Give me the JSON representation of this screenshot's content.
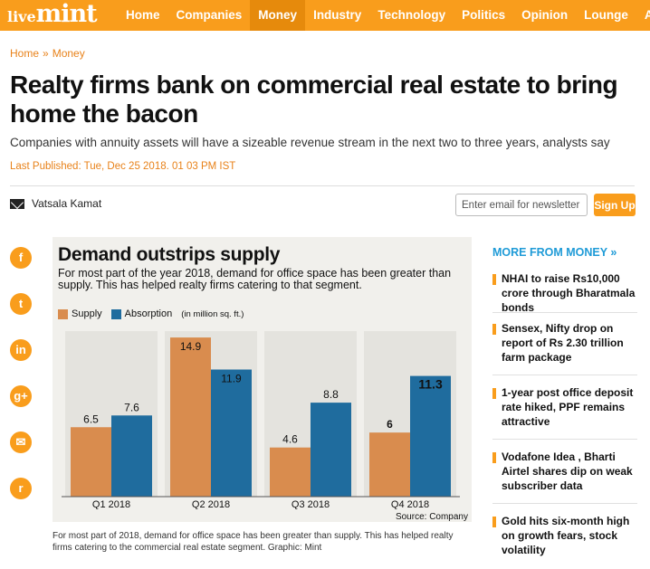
{
  "logo": {
    "part1": "live",
    "part2": "mint"
  },
  "nav": [
    "Home",
    "Companies",
    "Money",
    "Industry",
    "Technology",
    "Politics",
    "Opinion",
    "Lounge",
    "AI"
  ],
  "nav_active": "Money",
  "breadcrumb": {
    "home": "Home",
    "sep": "»",
    "section": "Money"
  },
  "article": {
    "headline": "Realty firms bank on commercial real estate to bring home the bacon",
    "summary": "Companies with annuity assets will have a sizeable revenue stream in the next two to three years, analysts say",
    "published": "Last Published: Tue, Dec 25 2018. 01 03 PM IST",
    "author": "Vatsala Kamat"
  },
  "newsletter": {
    "placeholder": "Enter email for newsletter",
    "button": "Sign Up"
  },
  "share": [
    {
      "name": "facebook",
      "glyph": "f"
    },
    {
      "name": "twitter",
      "glyph": "t"
    },
    {
      "name": "linkedin",
      "glyph": "in"
    },
    {
      "name": "google-plus",
      "glyph": "g+"
    },
    {
      "name": "email",
      "glyph": "✉"
    },
    {
      "name": "reddit",
      "glyph": "r"
    }
  ],
  "graphic": {
    "title": "Demand outstrips supply",
    "subtitle": "For most part of the year 2018, demand for office space has been greater than supply. This has helped realty firms catering to that segment.",
    "unit": "(in million sq. ft.)",
    "source": "Source: Company"
  },
  "chart_data": {
    "type": "bar",
    "categories": [
      "Q1 2018",
      "Q2 2018",
      "Q3 2018",
      "Q4 2018"
    ],
    "series": [
      {
        "name": "Supply",
        "values": [
          6.5,
          14.9,
          4.6,
          6
        ],
        "labels": [
          "6.5",
          "14.9",
          "4.6",
          "6"
        ],
        "color": "#d98c4e"
      },
      {
        "name": "Absorption",
        "values": [
          7.6,
          11.9,
          8.8,
          11.3
        ],
        "labels": [
          "7.6",
          "11.9",
          "8.8",
          "11.3"
        ],
        "color": "#1f6c9e"
      }
    ],
    "ylim": [
      0,
      15.5
    ],
    "grid": false,
    "legend": "top-left"
  },
  "caption": "For most part of 2018, demand for office space has been greater than supply. This has helped realty firms catering to the commercial real estate segment. Graphic: Mint",
  "sidebar": {
    "title": "MORE FROM MONEY »",
    "stories": [
      "NHAI to raise Rs10,000 crore through Bharatmala bonds",
      "Sensex, Nifty drop on report of Rs 2.30 trillion farm package",
      "1-year post office deposit rate hiked, PPF remains attractive",
      "Vodafone Idea , Bharti Airtel shares dip on weak subscriber data",
      "Gold hits six-month high on growth fears, stock volatility"
    ]
  },
  "colors": {
    "brand": "#f99d1c",
    "link": "#1f9bd7"
  }
}
